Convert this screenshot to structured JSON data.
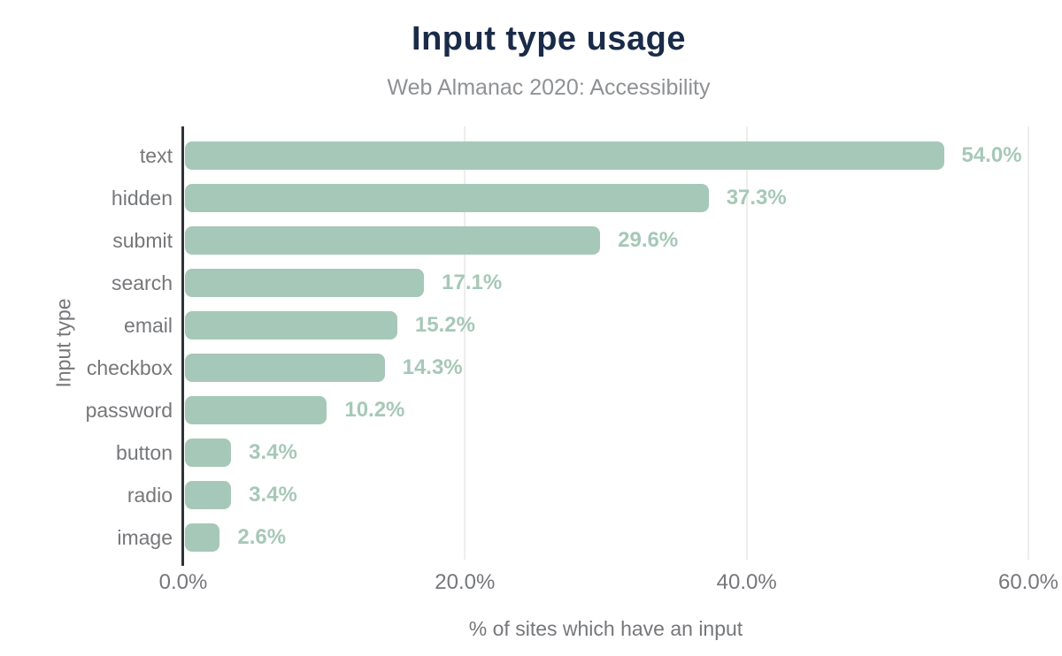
{
  "chart_data": {
    "type": "bar",
    "orientation": "horizontal",
    "title": "Input type usage",
    "subtitle": "Web Almanac 2020: Accessibility",
    "xlabel": "% of sites which have an input",
    "ylabel": "Input type",
    "categories": [
      "text",
      "hidden",
      "submit",
      "search",
      "email",
      "checkbox",
      "password",
      "button",
      "radio",
      "image"
    ],
    "values": [
      54.0,
      37.3,
      29.6,
      17.1,
      15.2,
      14.3,
      10.2,
      3.4,
      3.4,
      2.6
    ],
    "value_labels": [
      "54.0%",
      "37.3%",
      "29.6%",
      "17.1%",
      "15.2%",
      "14.3%",
      "10.2%",
      "3.4%",
      "3.4%",
      "2.6%"
    ],
    "x_ticks": [
      {
        "value": 0,
        "label": "0.0%"
      },
      {
        "value": 20,
        "label": "20.0%"
      },
      {
        "value": 40,
        "label": "40.0%"
      },
      {
        "value": 60,
        "label": "60.0%"
      }
    ],
    "xlim": [
      0,
      60
    ],
    "grid": "vertical-gridlines-at-20-40-60",
    "legend": "none",
    "colors": {
      "bar": "#a6c8b8",
      "value_label": "#a6c8b8",
      "title": "#1a2b49",
      "subtitle": "#8f9194",
      "axis_text": "#75777a",
      "gridline": "#ebedee",
      "axis_line": "#2f3338",
      "background": "#ffffff"
    }
  }
}
